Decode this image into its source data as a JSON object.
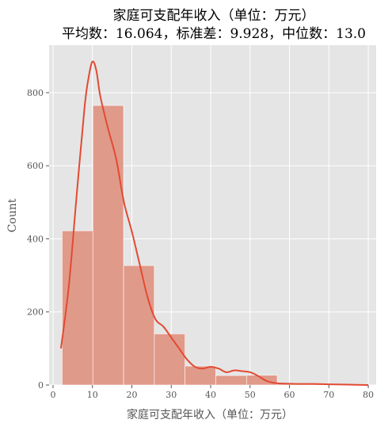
{
  "chart_data": {
    "type": "bar",
    "title": "家庭可支配年收入（单位：万元）",
    "subtitle": "平均数：16.064，标准差：9.928，中位数：13.0",
    "xlabel": "家庭可支配年收入（单位：万元）",
    "ylabel": "Count",
    "xlim": [
      -1,
      82
    ],
    "ylim": [
      0,
      930
    ],
    "xticks": [
      0,
      10,
      20,
      30,
      40,
      50,
      60,
      70,
      80
    ],
    "yticks": [
      0,
      200,
      400,
      600,
      800
    ],
    "grid": true,
    "bins": [
      {
        "x0": 2.3,
        "x1": 10.1,
        "value": 422
      },
      {
        "x0": 10.1,
        "x1": 17.9,
        "value": 765
      },
      {
        "x0": 17.9,
        "x1": 25.7,
        "value": 327
      },
      {
        "x0": 25.7,
        "x1": 33.5,
        "value": 140
      },
      {
        "x0": 33.5,
        "x1": 41.3,
        "value": 52
      },
      {
        "x0": 41.3,
        "x1": 49.1,
        "value": 26
      },
      {
        "x0": 49.1,
        "x1": 56.9,
        "value": 27
      },
      {
        "x0": 56.9,
        "x1": 64.7,
        "value": 4
      },
      {
        "x0": 64.7,
        "x1": 72.5,
        "value": 2
      },
      {
        "x0": 72.5,
        "x1": 80.3,
        "value": 1
      }
    ],
    "kde": {
      "x": [
        2,
        4,
        6,
        8,
        9,
        10,
        11,
        12,
        14,
        16,
        18,
        20,
        22,
        24,
        26,
        28,
        30,
        32,
        34,
        36,
        38,
        40,
        42,
        44,
        46,
        48,
        50,
        52,
        54,
        56,
        58,
        62,
        66,
        70,
        75,
        80
      ],
      "y": [
        100,
        270,
        520,
        760,
        840,
        885,
        860,
        790,
        700,
        620,
        500,
        420,
        330,
        240,
        180,
        160,
        130,
        100,
        70,
        50,
        45,
        50,
        45,
        35,
        40,
        38,
        35,
        25,
        12,
        6,
        4,
        3,
        3,
        2,
        1,
        0
      ]
    },
    "colors": {
      "bar": "#E09A8A",
      "line": "#E24A33",
      "background": "#E5E5E5",
      "grid": "#FFFFFF"
    }
  }
}
